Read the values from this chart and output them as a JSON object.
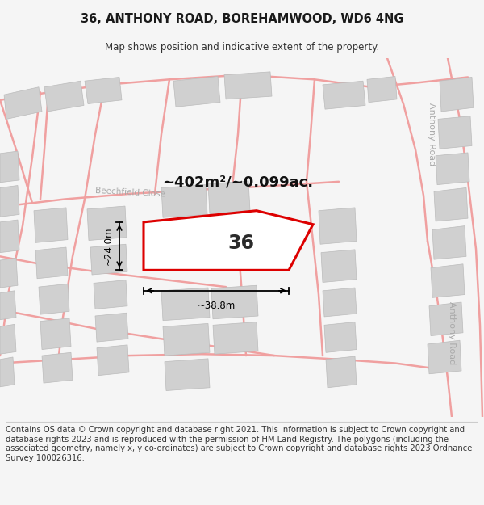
{
  "title": "36, ANTHONY ROAD, BOREHAMWOOD, WD6 4NG",
  "subtitle": "Map shows position and indicative extent of the property.",
  "footer": "Contains OS data © Crown copyright and database right 2021. This information is subject to Crown copyright and database rights 2023 and is reproduced with the permission of HM Land Registry. The polygons (including the associated geometry, namely x, y co-ordinates) are subject to Crown copyright and database rights 2023 Ordnance Survey 100026316.",
  "area_label": "~402m²/~0.099ac.",
  "number_label": "36",
  "width_label": "~38.8m",
  "height_label": "~24.0m",
  "bg_color": "#f5f5f5",
  "map_bg": "#ffffff",
  "road_color": "#f0a0a0",
  "building_color": "#d0d0d0",
  "building_edge": "#bbbbbb",
  "highlight_color": "#dd0000",
  "street_label_color": "#aaaaaa",
  "title_fontsize": 10.5,
  "subtitle_fontsize": 8.5,
  "footer_fontsize": 7.2,
  "area_fontsize": 13,
  "number_fontsize": 17,
  "dim_fontsize": 8.5
}
